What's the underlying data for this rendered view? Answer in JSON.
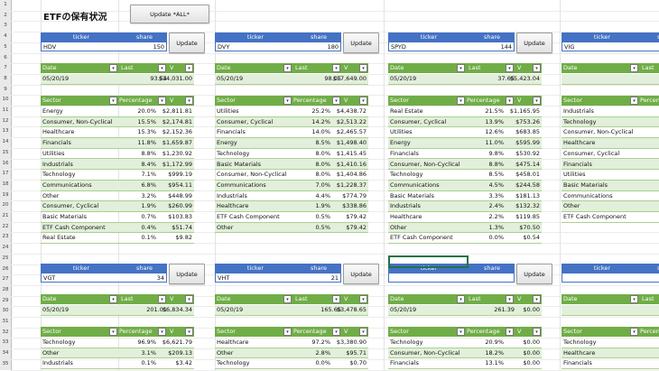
{
  "title": "ETFの保有状況",
  "update_all_label": "Update *ALL*",
  "row_numbers": [
    "1",
    "2",
    "3",
    "4",
    "5",
    "6",
    "7",
    "8",
    "9",
    "10",
    "11",
    "12",
    "13",
    "14",
    "15",
    "16",
    "17",
    "18",
    "19",
    "20",
    "21",
    "22",
    "23",
    "24",
    "25",
    "26",
    "27",
    "28",
    "29",
    "30",
    "31",
    "32",
    "33",
    "34",
    "35"
  ],
  "headers": {
    "ticker": "ticker",
    "share": "share",
    "update": "Update",
    "date": "Date",
    "last": "Last",
    "v": "V",
    "sector": "Sector",
    "percentage": "Percentage"
  },
  "panels_top": [
    {
      "ticker": "HDV",
      "share": "150",
      "date": "05/20/19",
      "last": "93.54",
      "v": "$14,031.00",
      "rows": [
        [
          "Energy",
          "20.0%",
          "$2,811.81"
        ],
        [
          "Consumer, Non-Cyclical",
          "15.5%",
          "$2,174.81"
        ],
        [
          "Healthcare",
          "15.3%",
          "$2,152.36"
        ],
        [
          "Financials",
          "11.8%",
          "$1,659.87"
        ],
        [
          "Utilities",
          "8.8%",
          "$1,230.92"
        ],
        [
          "Industrials",
          "8.4%",
          "$1,172.99"
        ],
        [
          "Technology",
          "7.1%",
          "$999.19"
        ],
        [
          "Communications",
          "6.8%",
          "$954.11"
        ],
        [
          "Other",
          "3.2%",
          "$448.99"
        ],
        [
          "Consumer, Cyclical",
          "1.9%",
          "$260.99"
        ],
        [
          "Basic Materials",
          "0.7%",
          "$103.83"
        ],
        [
          "ETF Cash Component",
          "0.4%",
          "$51.74"
        ],
        [
          "Real Estate",
          "0.1%",
          "$9.82"
        ]
      ]
    },
    {
      "ticker": "DVY",
      "share": "180",
      "date": "05/20/19",
      "last": "98.05",
      "v": "$17,649.00",
      "rows": [
        [
          "Utilities",
          "25.2%",
          "$4,438.72"
        ],
        [
          "Consumer, Cyclical",
          "14.2%",
          "$2,513.22"
        ],
        [
          "Financials",
          "14.0%",
          "$2,465.57"
        ],
        [
          "Energy",
          "8.5%",
          "$1,498.40"
        ],
        [
          "Technology",
          "8.0%",
          "$1,415.45"
        ],
        [
          "Basic Materials",
          "8.0%",
          "$1,410.16"
        ],
        [
          "Consumer, Non-Cyclical",
          "8.0%",
          "$1,404.86"
        ],
        [
          "Communications",
          "7.0%",
          "$1,228.37"
        ],
        [
          "Industrials",
          "4.4%",
          "$774.79"
        ],
        [
          "Healthcare",
          "1.9%",
          "$338.86"
        ],
        [
          "ETF Cash Component",
          "0.5%",
          "$79.42"
        ],
        [
          "Other",
          "0.5%",
          "$79.42"
        ]
      ]
    },
    {
      "ticker": "SPYD",
      "share": "144",
      "date": "05/20/19",
      "last": "37.65",
      "v": "$5,423.04",
      "rows": [
        [
          "Real Estate",
          "21.5%",
          "$1,165.95"
        ],
        [
          "Consumer, Cyclical",
          "13.9%",
          "$753.26"
        ],
        [
          "Utilities",
          "12.6%",
          "$683.85"
        ],
        [
          "Energy",
          "11.0%",
          "$595.99"
        ],
        [
          "Financials",
          "9.8%",
          "$530.92"
        ],
        [
          "Consumer, Non-Cyclical",
          "8.8%",
          "$475.14"
        ],
        [
          "Technology",
          "8.5%",
          "$458.01"
        ],
        [
          "Communications",
          "4.5%",
          "$244.58"
        ],
        [
          "Basic Materials",
          "3.3%",
          "$181.13"
        ],
        [
          "Industrials",
          "2.4%",
          "$132.32"
        ],
        [
          "Healthcare",
          "2.2%",
          "$119.85"
        ],
        [
          "Other",
          "1.3%",
          "$70.50"
        ],
        [
          "ETF Cash Component",
          "0.0%",
          "$0.54"
        ]
      ]
    },
    {
      "ticker": "VIG",
      "share": "",
      "date": "",
      "last": "",
      "v": "",
      "rows": [
        [
          "Industrials",
          "",
          ""
        ],
        [
          "Technology",
          "",
          ""
        ],
        [
          "Consumer, Non-Cyclical",
          "",
          ""
        ],
        [
          "Healthcare",
          "",
          ""
        ],
        [
          "Consumer, Cyclical",
          "",
          ""
        ],
        [
          "Financials",
          "",
          ""
        ],
        [
          "Utilities",
          "",
          ""
        ],
        [
          "Basic Materials",
          "",
          ""
        ],
        [
          "Communications",
          "",
          ""
        ],
        [
          "Other",
          "",
          ""
        ],
        [
          "ETF Cash Component",
          "",
          ""
        ]
      ]
    }
  ],
  "panels_bottom": [
    {
      "ticker": "VGT",
      "share": "34",
      "date": "05/20/19",
      "last": "201.01",
      "v": "$6,834.34",
      "rows": [
        [
          "Technology",
          "96.9%",
          "$6,621.79"
        ],
        [
          "Other",
          "3.1%",
          "$209.13"
        ],
        [
          "Industrials",
          "0.1%",
          "$3.42"
        ]
      ]
    },
    {
      "ticker": "VHT",
      "share": "21",
      "date": "05/20/19",
      "last": "165.65",
      "v": "$3,478.65",
      "rows": [
        [
          "Healthcare",
          "97.2%",
          "$3,380.90"
        ],
        [
          "Other",
          "2.8%",
          "$95.71"
        ],
        [
          "Technology",
          "0.0%",
          "$0.70"
        ]
      ]
    },
    {
      "ticker": "",
      "share": "",
      "date": "05/20/19",
      "last": "261.39",
      "v": "$0.00",
      "rows": [
        [
          "Technology",
          "20.9%",
          "$0.00"
        ],
        [
          "Consumer, Non-Cyclical",
          "18.2%",
          "$0.00"
        ],
        [
          "Financials",
          "13.1%",
          "$0.00"
        ]
      ]
    },
    {
      "ticker": "",
      "share": "",
      "date": "",
      "last": "",
      "v": "",
      "rows": [
        [
          "Technology",
          "",
          ""
        ],
        [
          "Healthcare",
          "",
          ""
        ],
        [
          "Financials",
          "",
          ""
        ]
      ]
    }
  ]
}
